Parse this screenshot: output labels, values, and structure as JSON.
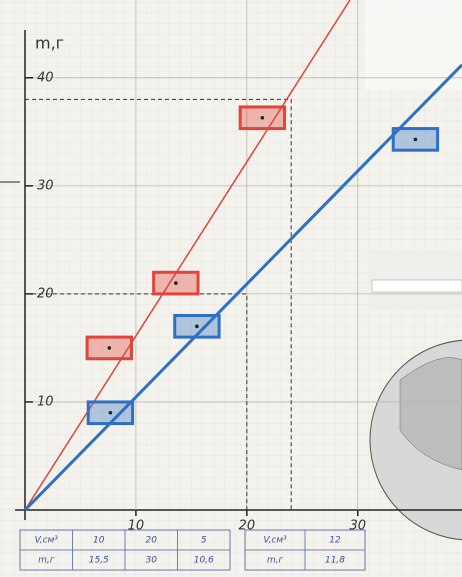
{
  "chart_data": {
    "type": "scatter",
    "ylabel": "m,г",
    "xlim": [
      0,
      39.4
    ],
    "ylim": [
      0,
      47.2
    ],
    "xticks": [
      10,
      20,
      30
    ],
    "yticks": [
      10,
      20,
      30,
      40
    ],
    "grid": true,
    "series": [
      {
        "color": "#e0443c",
        "x": [
          7.6,
          13.6,
          21.4
        ],
        "values": [
          15,
          21,
          36.3
        ],
        "xerr": 2,
        "yerr": 1
      },
      {
        "color": "#2f6fc4",
        "x": [
          7.7,
          15.5,
          35.2
        ],
        "values": [
          9,
          17,
          34.3
        ],
        "xerr": 2,
        "yerr": 1
      }
    ],
    "fit_lines": [
      {
        "color": "#e0443c",
        "x": [
          0,
          29.3
        ],
        "values": [
          0,
          47.2
        ]
      },
      {
        "color": "#2f6fc4",
        "x": [
          0,
          39.4
        ],
        "values": [
          0,
          41.2
        ]
      }
    ],
    "guides": [
      {
        "x": 24,
        "y": 38
      },
      {
        "x": 20,
        "y": 20
      }
    ],
    "tables": [
      {
        "rows": [
          [
            "V,см³",
            "10",
            "20",
            "5"
          ],
          [
            "m,г",
            "15,5",
            "30",
            "10,6"
          ]
        ]
      },
      {
        "rows": [
          [
            "V,см³",
            "12"
          ],
          [
            "m,г",
            "11,8"
          ]
        ]
      }
    ]
  }
}
